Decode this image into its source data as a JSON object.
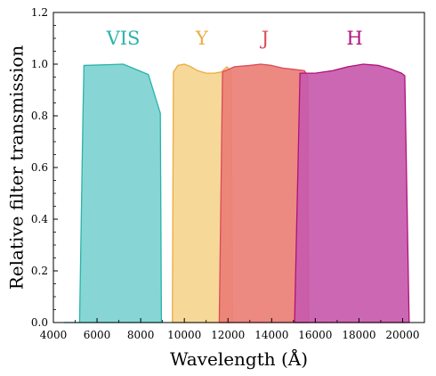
{
  "chart_data": {
    "type": "area",
    "xlabel": "Wavelength (Å)",
    "ylabel": "Relative filter transmission",
    "xlim": [
      4000,
      21000
    ],
    "ylim": [
      0.0,
      1.2
    ],
    "xticks": [
      4000,
      6000,
      8000,
      10000,
      12000,
      14000,
      16000,
      18000,
      20000
    ],
    "yticks": [
      0.0,
      0.2,
      0.4,
      0.6,
      0.8,
      1.0,
      1.2
    ],
    "yticks_labels": [
      "0.0",
      "0.2",
      "0.4",
      "0.6",
      "0.8",
      "1.0",
      "1.2"
    ],
    "grid": false,
    "series": [
      {
        "name": "VIS",
        "fill": "#7dd3d1",
        "stroke": "#2ab3aa",
        "label_color": "#2ab3aa",
        "label_x": 7200,
        "points": [
          [
            4500,
            0.0
          ],
          [
            5200,
            0.0
          ],
          [
            5350,
            0.78
          ],
          [
            5400,
            0.995
          ],
          [
            7200,
            1.0
          ],
          [
            8350,
            0.96
          ],
          [
            8900,
            0.81
          ],
          [
            8950,
            0.0
          ]
        ]
      },
      {
        "name": "Y",
        "fill": "#f5d590",
        "stroke": "#ecac40",
        "label_color": "#ecac40",
        "label_x": 10800,
        "points": [
          [
            9450,
            0.0
          ],
          [
            9500,
            0.97
          ],
          [
            9700,
            0.995
          ],
          [
            10000,
            1.0
          ],
          [
            10300,
            0.99
          ],
          [
            10600,
            0.975
          ],
          [
            11000,
            0.965
          ],
          [
            11400,
            0.965
          ],
          [
            11700,
            0.97
          ],
          [
            11950,
            0.99
          ],
          [
            12150,
            0.97
          ],
          [
            12200,
            0.0
          ]
        ]
      },
      {
        "name": "J",
        "fill": "#ea7f76",
        "stroke": "#dc4a5a",
        "label_color": "#dc4a5a",
        "label_x": 13700,
        "points": [
          [
            11600,
            0.0
          ],
          [
            11750,
            0.97
          ],
          [
            12300,
            0.99
          ],
          [
            13000,
            0.995
          ],
          [
            13500,
            1.0
          ],
          [
            14000,
            0.995
          ],
          [
            14500,
            0.985
          ],
          [
            15000,
            0.98
          ],
          [
            15500,
            0.975
          ],
          [
            15650,
            0.955
          ],
          [
            15700,
            0.0
          ]
        ]
      },
      {
        "name": "H",
        "fill": "#c85aad",
        "stroke": "#b0127a",
        "label_color": "#b0127a",
        "label_x": 17800,
        "points": [
          [
            15050,
            0.0
          ],
          [
            15300,
            0.965
          ],
          [
            16000,
            0.965
          ],
          [
            16800,
            0.975
          ],
          [
            17500,
            0.99
          ],
          [
            18200,
            1.0
          ],
          [
            18900,
            0.995
          ],
          [
            19500,
            0.98
          ],
          [
            19950,
            0.965
          ],
          [
            20100,
            0.955
          ],
          [
            20300,
            0.0
          ]
        ]
      }
    ]
  }
}
